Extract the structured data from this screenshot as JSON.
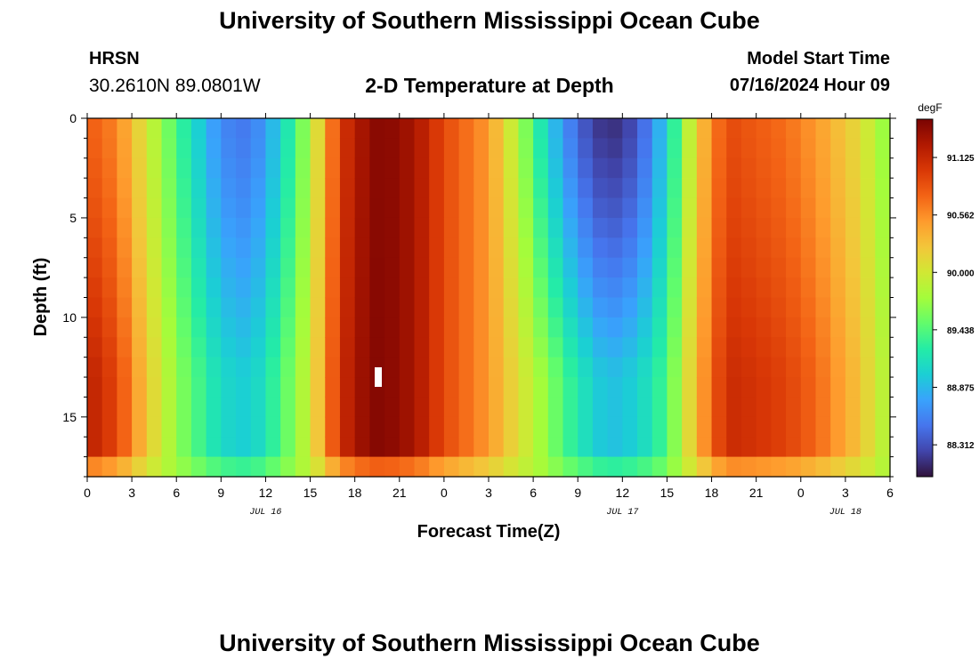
{
  "header": {
    "title": "University of Southern Mississippi Ocean Cube",
    "station": "HRSN",
    "coords": "30.2610N  89.0801W",
    "subtitle": "2-D Temperature at Depth",
    "model_start_label": "Model Start Time",
    "model_start_value": "07/16/2024 Hour 09"
  },
  "footer": {
    "title": "University of Southern Mississippi Ocean Cube"
  },
  "chart_data": {
    "type": "heatmap",
    "title": "2-D Temperature at Depth",
    "xlabel": "Forecast Time(Z)",
    "ylabel": "Depth (ft)",
    "x_range_hours_since_jul16_00z": [
      0,
      54
    ],
    "x_tick_labels": [
      "0",
      "3",
      "6",
      "9",
      "12",
      "15",
      "18",
      "21",
      "0",
      "3",
      "6",
      "9",
      "12",
      "15",
      "18",
      "21",
      "0",
      "3",
      "6"
    ],
    "day_labels": [
      {
        "label": "JUL 16",
        "at_tick_index": 4
      },
      {
        "label": "JUL 17",
        "at_tick_index": 12
      },
      {
        "label": "JUL 18",
        "at_tick_index": 17
      }
    ],
    "y_range": [
      0,
      18
    ],
    "y_ticks": [
      0,
      5,
      10,
      15
    ],
    "colorbar": {
      "unit": "degF",
      "range": [
        88.0,
        91.5
      ],
      "tick_values": [
        91.125,
        90.562,
        90.0,
        89.438,
        88.875,
        88.312
      ],
      "tick_labels": [
        "91.125",
        "90.562",
        "90.000",
        "89.438",
        "88.875",
        "88.312"
      ]
    },
    "colormap": [
      "#30123b",
      "#4145ab",
      "#4675ed",
      "#39a2fc",
      "#1bcfd4",
      "#24eca6",
      "#61fc6c",
      "#a4fc3b",
      "#d1e834",
      "#f3c63a",
      "#fe9b2d",
      "#f36315",
      "#d93806",
      "#b11901",
      "#7a0402"
    ],
    "time_profile_hours": [
      0,
      2,
      4,
      6,
      9,
      11,
      13,
      15,
      17,
      19,
      20,
      22,
      24,
      27,
      29,
      31,
      33,
      35,
      37,
      39,
      41,
      43,
      45,
      47,
      49,
      52,
      54
    ],
    "time_profile_surface_degF": [
      90.8,
      90.6,
      90.0,
      89.4,
      88.6,
      88.5,
      89.0,
      89.8,
      91.0,
      91.4,
      91.45,
      91.3,
      90.9,
      90.5,
      89.8,
      89.0,
      88.4,
      88.1,
      88.3,
      89.0,
      90.2,
      90.9,
      90.8,
      90.7,
      90.5,
      90.1,
      89.6
    ],
    "time_profile_depth_anomaly_degF": [
      0.5,
      0.4,
      0.3,
      0.35,
      0.6,
      0.6,
      0.5,
      0.2,
      0.1,
      0.05,
      0.0,
      0.0,
      0.0,
      0.0,
      0.35,
      0.8,
      1.0,
      1.0,
      0.9,
      0.5,
      0.2,
      0.25,
      0.3,
      0.3,
      0.3,
      0.2,
      0.2
    ],
    "near_bottom_degF": 89.8
  }
}
